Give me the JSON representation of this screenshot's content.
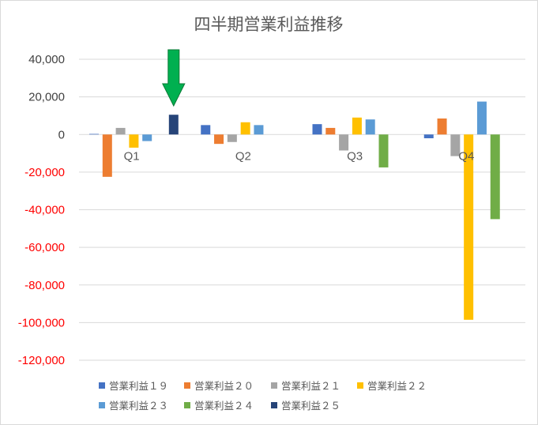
{
  "chart_data": {
    "type": "bar",
    "title": "四半期営業利益推移",
    "categories": [
      "Q1",
      "Q2",
      "Q3",
      "Q4"
    ],
    "series": [
      {
        "name": "営業利益１９",
        "color": "#4472c4",
        "values": [
          300,
          5000,
          5500,
          -2000
        ]
      },
      {
        "name": "営業利益２０",
        "color": "#ed7d31",
        "values": [
          -22500,
          -5000,
          3500,
          8500
        ]
      },
      {
        "name": "営業利益２１",
        "color": "#a5a5a5",
        "values": [
          3500,
          -4000,
          -8500,
          -11500
        ]
      },
      {
        "name": "営業利益２２",
        "color": "#ffc000",
        "values": [
          -7000,
          6500,
          9000,
          -98500
        ]
      },
      {
        "name": "営業利益２３",
        "color": "#5b9bd5",
        "values": [
          -3500,
          5000,
          8000,
          17500
        ]
      },
      {
        "name": "営業利益２４",
        "color": "#70ad47",
        "values": [
          0,
          0,
          -17500,
          -45000
        ]
      },
      {
        "name": "営業利益２５",
        "color": "#264478",
        "values": [
          10500,
          0,
          0,
          0
        ]
      }
    ],
    "ylim": [
      -120000,
      40000
    ],
    "yticks": [
      "40,000",
      "20,000",
      "0",
      "-20,000",
      "-40,000",
      "-60,000",
      "-80,000",
      "-100,000",
      "-120,000"
    ],
    "ytick_values": [
      40000,
      20000,
      0,
      -20000,
      -40000,
      -60000,
      -80000,
      -100000,
      -120000
    ],
    "positive_tick_color": "#404040",
    "negative_tick_color": "#ff0000",
    "grid": true,
    "legend": "bottom",
    "annotation": {
      "type": "arrow",
      "color": "#00b050",
      "target_category": "Q1",
      "target_series": "営業利益２５"
    }
  }
}
